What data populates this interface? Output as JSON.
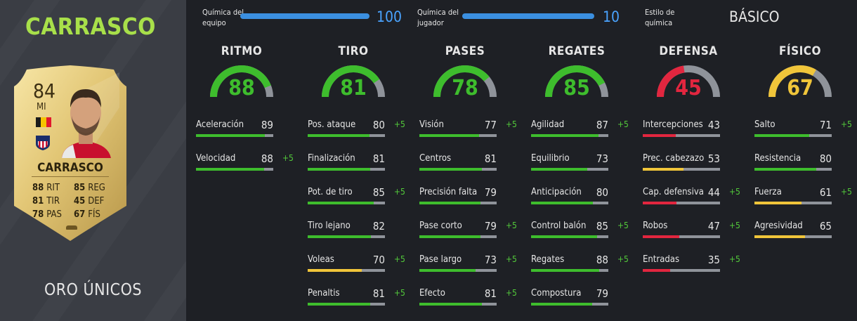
{
  "player": {
    "name": "CARRASCO",
    "card_type": "ORO ÚNICOS",
    "card": {
      "rating": "84",
      "position": "MI",
      "name": "CARRASCO",
      "flag_colors": [
        "#1a1a1a",
        "#f5c400",
        "#e0182d"
      ],
      "club_colors": [
        "#c8102e",
        "#ffffff",
        "#1a2d6b"
      ],
      "stats": [
        {
          "value": "88",
          "label": "RIT"
        },
        {
          "value": "81",
          "label": "TIR"
        },
        {
          "value": "78",
          "label": "PAS"
        },
        {
          "value": "85",
          "label": "REG"
        },
        {
          "value": "45",
          "label": "DEF"
        },
        {
          "value": "67",
          "label": "FÍS"
        }
      ]
    }
  },
  "chemistry": {
    "team_label_1": "Química del",
    "team_label_2": "equipo",
    "team_value": "100",
    "team_fraction": 1.0,
    "player_label_1": "Química del",
    "player_label_2": "jugador",
    "player_value": "10",
    "player_fraction": 1.0,
    "style_label_1": "Estilo de",
    "style_label_2": "química",
    "style_value": "BÁSICO"
  },
  "colors": {
    "green": "#3ebd2d",
    "yellow": "#f0c53a",
    "red": "#e2263f",
    "track": "#8f939a",
    "bonus": "#52c93a",
    "blue": "#3b8fe0"
  },
  "categories": [
    {
      "title": "RITMO",
      "value": "88",
      "color": "green",
      "stats": [
        {
          "name": "Aceleración",
          "value": "89",
          "bonus": "",
          "color": "green"
        },
        {
          "name": "Velocidad",
          "value": "88",
          "bonus": "+5",
          "color": "green"
        }
      ]
    },
    {
      "title": "TIRO",
      "value": "81",
      "color": "green",
      "stats": [
        {
          "name": "Pos. ataque",
          "value": "80",
          "bonus": "+5",
          "color": "green"
        },
        {
          "name": "Finalización",
          "value": "81",
          "bonus": "",
          "color": "green"
        },
        {
          "name": "Pot. de tiro",
          "value": "85",
          "bonus": "+5",
          "color": "green"
        },
        {
          "name": "Tiro lejano",
          "value": "82",
          "bonus": "",
          "color": "green"
        },
        {
          "name": "Voleas",
          "value": "70",
          "bonus": "+5",
          "color": "yellow"
        },
        {
          "name": "Penaltis",
          "value": "81",
          "bonus": "+5",
          "color": "green"
        }
      ]
    },
    {
      "title": "PASES",
      "value": "78",
      "color": "green",
      "stats": [
        {
          "name": "Visión",
          "value": "77",
          "bonus": "+5",
          "color": "green"
        },
        {
          "name": "Centros",
          "value": "81",
          "bonus": "",
          "color": "green"
        },
        {
          "name": "Precisión falta",
          "value": "79",
          "bonus": "",
          "color": "green"
        },
        {
          "name": "Pase corto",
          "value": "79",
          "bonus": "+5",
          "color": "green"
        },
        {
          "name": "Pase largo",
          "value": "73",
          "bonus": "+5",
          "color": "green"
        },
        {
          "name": "Efecto",
          "value": "81",
          "bonus": "+5",
          "color": "green"
        }
      ]
    },
    {
      "title": "REGATES",
      "value": "85",
      "color": "green",
      "stats": [
        {
          "name": "Agilidad",
          "value": "87",
          "bonus": "+5",
          "color": "green"
        },
        {
          "name": "Equilibrio",
          "value": "73",
          "bonus": "",
          "color": "green"
        },
        {
          "name": "Anticipación",
          "value": "80",
          "bonus": "",
          "color": "green"
        },
        {
          "name": "Control balón",
          "value": "85",
          "bonus": "+5",
          "color": "green"
        },
        {
          "name": "Regates",
          "value": "88",
          "bonus": "+5",
          "color": "green"
        },
        {
          "name": "Compostura",
          "value": "79",
          "bonus": "",
          "color": "green"
        }
      ]
    },
    {
      "title": "DEFENSA",
      "value": "45",
      "color": "red",
      "stats": [
        {
          "name": "Intercepciones",
          "value": "43",
          "bonus": "",
          "color": "red"
        },
        {
          "name": "Prec. cabezazo",
          "value": "53",
          "bonus": "",
          "color": "yellow"
        },
        {
          "name": "Cap. defensiva",
          "value": "44",
          "bonus": "+5",
          "color": "red"
        },
        {
          "name": "Robos",
          "value": "47",
          "bonus": "+5",
          "color": "red"
        },
        {
          "name": "Entradas",
          "value": "35",
          "bonus": "+5",
          "color": "red"
        }
      ]
    },
    {
      "title": "FÍSICO",
      "value": "67",
      "color": "yellow",
      "stats": [
        {
          "name": "Salto",
          "value": "71",
          "bonus": "+5",
          "color": "green"
        },
        {
          "name": "Resistencia",
          "value": "80",
          "bonus": "",
          "color": "green"
        },
        {
          "name": "Fuerza",
          "value": "61",
          "bonus": "+5",
          "color": "yellow"
        },
        {
          "name": "Agresividad",
          "value": "65",
          "bonus": "",
          "color": "yellow"
        }
      ]
    }
  ]
}
